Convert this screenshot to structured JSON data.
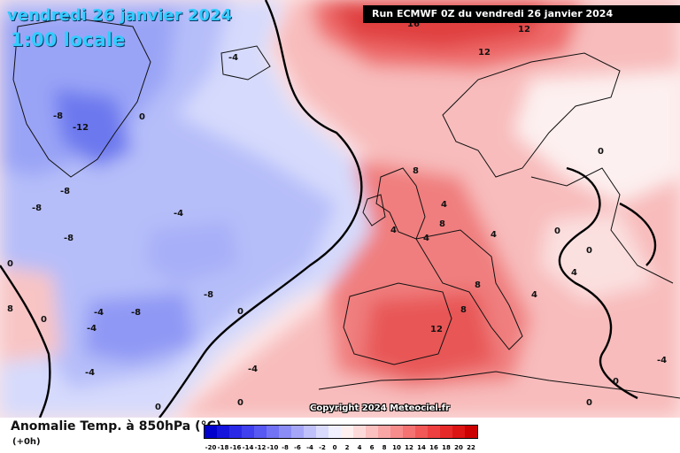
{
  "titles": {
    "date": "vendredi 26 janvier 2024",
    "time": "1:00 locale",
    "run": "Run ECMWF 0Z du vendredi 26 janvier 2024"
  },
  "copyright": "Copyright 2024 Meteociel.fr",
  "legend": {
    "title": "Anomalie Temp. à 850hPa (°C)",
    "subtitle": "(+0h)",
    "ticks": [
      "-20",
      "-18",
      "-16",
      "-14",
      "-12",
      "-10",
      "-8",
      "-6",
      "-4",
      "-2",
      "0",
      "2",
      "4",
      "6",
      "8",
      "10",
      "12",
      "14",
      "16",
      "18",
      "20",
      "22"
    ],
    "colors": [
      "#0000cc",
      "#1414dd",
      "#2a2ae6",
      "#4040ee",
      "#5858f2",
      "#7272f5",
      "#8c8cf7",
      "#a6a6f9",
      "#c0c0fb",
      "#dadafd",
      "#f0f0ff",
      "#fff0f0",
      "#fddada",
      "#fbc0c0",
      "#f9a6a6",
      "#f78c8c",
      "#f57272",
      "#f25858",
      "#ee4040",
      "#e62a2a",
      "#dd1414",
      "#cc0000"
    ]
  },
  "map": {
    "contour_labels": [
      "16",
      "12",
      "12",
      "-8",
      "-12",
      "0",
      "-4",
      "-8",
      "-8",
      "-8",
      "-4",
      "-8",
      "-4",
      "-4",
      "-8",
      "0",
      "8",
      "4",
      "4",
      "0",
      "0",
      "0",
      "8",
      "4",
      "4",
      "8",
      "12",
      "8",
      "0",
      "4",
      "4",
      "0",
      "0",
      "0",
      "0",
      "8",
      "-4",
      "0",
      "-4",
      "0",
      "-4"
    ]
  }
}
